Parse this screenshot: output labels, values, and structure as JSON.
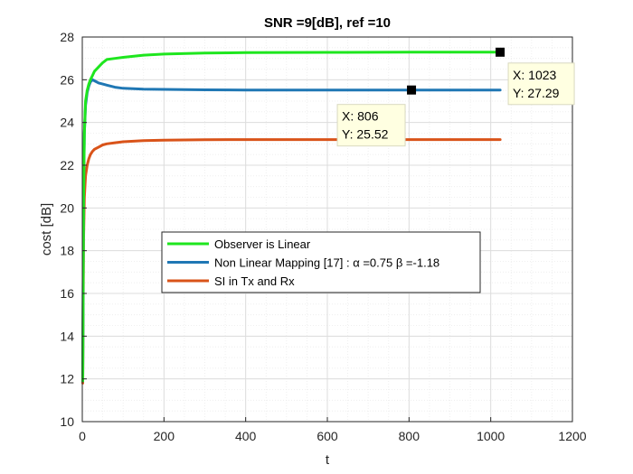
{
  "chart_data": {
    "type": "line",
    "title": "SNR =9[dB], ref =10",
    "xlabel": "t",
    "ylabel": "cost [dB]",
    "xlim": [
      0,
      1200
    ],
    "ylim": [
      10,
      28
    ],
    "xticks": [
      0,
      200,
      400,
      600,
      800,
      1000,
      1200
    ],
    "yticks": [
      10,
      12,
      14,
      16,
      18,
      20,
      22,
      24,
      26,
      28
    ],
    "grid": true,
    "minor_grid": true,
    "legend_position": "center",
    "series": [
      {
        "name": "Observer is Linear",
        "color": "#1ee61e",
        "x": [
          1,
          3,
          5,
          8,
          12,
          16,
          20,
          25,
          30,
          40,
          50,
          60,
          80,
          100,
          150,
          200,
          300,
          400,
          600,
          800,
          1023
        ],
        "y": [
          11.9,
          20.5,
          23.5,
          25.0,
          25.5,
          25.8,
          26.0,
          26.2,
          26.4,
          26.6,
          26.8,
          26.95,
          27.0,
          27.05,
          27.15,
          27.2,
          27.25,
          27.27,
          27.28,
          27.29,
          27.29
        ]
      },
      {
        "name": "Non Linear Mapping [17] : α =0.75 β =-1.18",
        "color": "#1f77b4",
        "x": [
          1,
          3,
          5,
          8,
          12,
          16,
          20,
          25,
          30,
          40,
          50,
          60,
          80,
          100,
          150,
          200,
          300,
          400,
          600,
          806,
          1023
        ],
        "y": [
          11.9,
          20.5,
          23.5,
          24.8,
          25.4,
          25.7,
          25.9,
          26.0,
          25.95,
          25.85,
          25.8,
          25.75,
          25.65,
          25.6,
          25.56,
          25.55,
          25.53,
          25.52,
          25.52,
          25.52,
          25.52
        ]
      },
      {
        "name": "SI in Tx and Rx",
        "color": "#d95319",
        "x": [
          1,
          3,
          5,
          8,
          12,
          16,
          20,
          25,
          30,
          40,
          50,
          60,
          80,
          100,
          150,
          200,
          300,
          400,
          600,
          800,
          1023
        ],
        "y": [
          11.8,
          18.5,
          20.5,
          21.5,
          22.0,
          22.3,
          22.5,
          22.65,
          22.75,
          22.85,
          22.95,
          23.0,
          23.05,
          23.1,
          23.15,
          23.17,
          23.19,
          23.2,
          23.2,
          23.2,
          23.2
        ]
      }
    ],
    "datatips": [
      {
        "series": 0,
        "x": 1023,
        "y": 27.29,
        "line1": "X: 1023",
        "line2": "Y: 27.29"
      },
      {
        "series": 1,
        "x": 806,
        "y": 25.52,
        "line1": "X: 806",
        "line2": "Y: 25.52"
      }
    ]
  }
}
